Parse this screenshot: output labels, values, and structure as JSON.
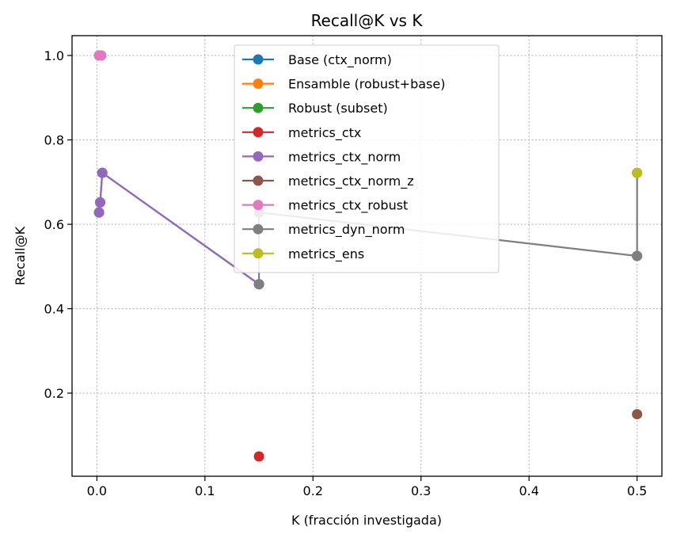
{
  "chart_data": {
    "type": "line",
    "title": "Recall@K vs K",
    "xlabel": "K (fracción investigada)",
    "ylabel": "Recall@K",
    "xlim": [
      -0.023,
      0.523
    ],
    "ylim": [
      0.003,
      1.047
    ],
    "xticks": [
      0.0,
      0.1,
      0.2,
      0.3,
      0.4,
      0.5
    ],
    "xtick_labels": [
      "0.0",
      "0.1",
      "0.2",
      "0.3",
      "0.4",
      "0.5"
    ],
    "yticks": [
      0.2,
      0.4,
      0.6,
      0.8,
      1.0
    ],
    "ytick_labels": [
      "0.2",
      "0.4",
      "0.6",
      "0.8",
      "1.0"
    ],
    "grid": true,
    "legend_position": "top-center",
    "series": [
      {
        "name": "Base (ctx_norm)",
        "color": "#1f77b4",
        "points": [
          [
            0.002,
            0.628
          ],
          [
            0.003,
            0.652
          ],
          [
            0.005,
            0.722
          ],
          [
            0.15,
            0.458
          ]
        ]
      },
      {
        "name": "Ensamble (robust+base)",
        "color": "#ff7f0e",
        "points": [
          [
            0.5,
            0.722
          ],
          [
            0.5,
            0.525
          ]
        ]
      },
      {
        "name": "Robust (subset)",
        "color": "#2ca02c",
        "points": [
          [
            0.002,
            1.0
          ],
          [
            0.004,
            1.0
          ]
        ]
      },
      {
        "name": "metrics_ctx",
        "color": "#d62728",
        "points": [
          [
            0.15,
            0.05
          ]
        ]
      },
      {
        "name": "metrics_ctx_norm",
        "color": "#9467bd",
        "points": [
          [
            0.002,
            0.628
          ],
          [
            0.003,
            0.652
          ],
          [
            0.005,
            0.722
          ],
          [
            0.15,
            0.458
          ]
        ]
      },
      {
        "name": "metrics_ctx_norm_z",
        "color": "#8c564b",
        "points": [
          [
            0.5,
            0.15
          ]
        ]
      },
      {
        "name": "metrics_ctx_robust",
        "color": "#e377c2",
        "points": [
          [
            0.002,
            1.0
          ],
          [
            0.004,
            1.0
          ]
        ]
      },
      {
        "name": "metrics_dyn_norm",
        "color": "#7f7f7f",
        "points": [
          [
            0.15,
            0.458
          ],
          [
            0.15,
            0.628
          ],
          [
            0.5,
            0.525
          ],
          [
            0.5,
            0.722
          ]
        ]
      },
      {
        "name": "metrics_ens",
        "color": "#bcbd22",
        "points": [
          [
            0.5,
            0.722
          ]
        ]
      }
    ]
  }
}
